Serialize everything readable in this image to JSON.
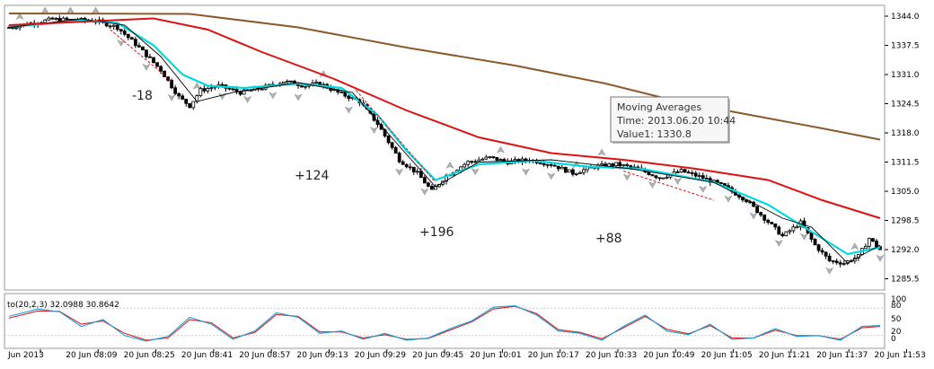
{
  "chart_data": {
    "type": "candlestick",
    "title": "",
    "price_axis": {
      "ylim": [
        1283,
        1346
      ],
      "ticks": [
        "1344.0",
        "1337.5",
        "1331.0",
        "1324.5",
        "1318.0",
        "1311.5",
        "1305.0",
        "1298.5",
        "1292.0",
        "1285.5"
      ]
    },
    "time_axis": {
      "labels": [
        "Jun 2013",
        "20 Jun 08:09",
        "20 Jun 08:25",
        "20 Jun 08:41",
        "20 Jun 08:57",
        "20 Jun 09:13",
        "20 Jun 09:29",
        "20 Jun 09:45",
        "20 Jun 10:01",
        "20 Jun 10:17",
        "20 Jun 10:33",
        "20 Jun 10:49",
        "20 Jun 11:05",
        "20 Jun 11:21",
        "20 Jun 11:37",
        "20 Jun 11:53"
      ]
    },
    "price_path": [
      [
        0,
        1341.5
      ],
      [
        12,
        1343.3
      ],
      [
        24,
        1343.0
      ],
      [
        30,
        1341.5
      ],
      [
        36,
        1337.0
      ],
      [
        42,
        1332.0
      ],
      [
        47,
        1326.0
      ],
      [
        50,
        1324.0
      ],
      [
        53,
        1327.5
      ],
      [
        58,
        1328.5
      ],
      [
        64,
        1327.0
      ],
      [
        70,
        1328.0
      ],
      [
        76,
        1329.5
      ],
      [
        82,
        1328.5
      ],
      [
        86,
        1329.0
      ],
      [
        91,
        1327.0
      ],
      [
        97,
        1325.0
      ],
      [
        102,
        1320.0
      ],
      [
        108,
        1312.0
      ],
      [
        113,
        1309.0
      ],
      [
        117,
        1305.0
      ],
      [
        121,
        1308.5
      ],
      [
        127,
        1311.5
      ],
      [
        133,
        1312.5
      ],
      [
        138,
        1311.5
      ],
      [
        144,
        1312.0
      ],
      [
        150,
        1311.0
      ],
      [
        156,
        1309.0
      ],
      [
        162,
        1310.5
      ],
      [
        168,
        1311.0
      ],
      [
        174,
        1310.0
      ],
      [
        180,
        1308.0
      ],
      [
        186,
        1309.5
      ],
      [
        192,
        1308.0
      ],
      [
        198,
        1306.0
      ],
      [
        204,
        1303.0
      ],
      [
        209,
        1299.0
      ],
      [
        214,
        1295.0
      ],
      [
        219,
        1298.0
      ],
      [
        223,
        1293.0
      ],
      [
        227,
        1289.5
      ],
      [
        231,
        1289.0
      ],
      [
        235,
        1290.5
      ],
      [
        238,
        1294.5
      ],
      [
        241,
        1292.0
      ]
    ],
    "series": [
      {
        "name": "",
        "color": "#00d8e0",
        "points": [
          [
            0,
            1341.6
          ],
          [
            20,
            1343.0
          ],
          [
            30,
            1342.5
          ],
          [
            40,
            1337.5
          ],
          [
            48,
            1331.0
          ],
          [
            55,
            1328.5
          ],
          [
            65,
            1328.0
          ],
          [
            80,
            1329.0
          ],
          [
            92,
            1328.0
          ],
          [
            102,
            1322.0
          ],
          [
            110,
            1314.0
          ],
          [
            118,
            1307.5
          ],
          [
            130,
            1311.0
          ],
          [
            145,
            1311.8
          ],
          [
            160,
            1310.5
          ],
          [
            175,
            1310.0
          ],
          [
            195,
            1307.0
          ],
          [
            210,
            1302.0
          ],
          [
            222,
            1296.0
          ],
          [
            232,
            1291.0
          ],
          [
            241,
            1292.5
          ]
        ]
      },
      {
        "name": "",
        "color": "#000000",
        "points": [
          [
            0,
            1341.5
          ],
          [
            20,
            1343.4
          ],
          [
            32,
            1342.0
          ],
          [
            42,
            1335.0
          ],
          [
            52,
            1325.0
          ],
          [
            62,
            1327.0
          ],
          [
            80,
            1329.2
          ],
          [
            95,
            1327.0
          ],
          [
            108,
            1315.0
          ],
          [
            118,
            1306.0
          ],
          [
            130,
            1311.5
          ],
          [
            150,
            1312.0
          ],
          [
            172,
            1310.0
          ],
          [
            195,
            1307.0
          ],
          [
            214,
            1299.0
          ],
          [
            222,
            1297.0
          ],
          [
            232,
            1289.0
          ],
          [
            241,
            1293.0
          ]
        ]
      },
      {
        "name": "",
        "color": "#dd1111",
        "points": [
          [
            0,
            1342.0
          ],
          [
            40,
            1343.5
          ],
          [
            55,
            1341.0
          ],
          [
            70,
            1336.0
          ],
          [
            90,
            1330.0
          ],
          [
            110,
            1323.0
          ],
          [
            130,
            1317.0
          ],
          [
            150,
            1313.5
          ],
          [
            170,
            1312.0
          ],
          [
            190,
            1310.0
          ],
          [
            210,
            1307.5
          ],
          [
            225,
            1303.0
          ],
          [
            241,
            1299.0
          ]
        ]
      },
      {
        "name": "",
        "color": "#8b5a2b",
        "points": [
          [
            0,
            1344.6
          ],
          [
            50,
            1344.5
          ],
          [
            80,
            1341.5
          ],
          [
            110,
            1337.0
          ],
          [
            140,
            1333.0
          ],
          [
            165,
            1329.0
          ],
          [
            185,
            1325.0
          ],
          [
            205,
            1322.0
          ],
          [
            225,
            1319.0
          ],
          [
            241,
            1316.5
          ]
        ]
      }
    ],
    "annotations": [
      "-18",
      "+124",
      "+196",
      "+88"
    ],
    "tooltip": {
      "title": "Moving Averages",
      "time": "Time: 2013.06.20 10:44",
      "value": "Value1: 1330.8"
    },
    "oscillator": {
      "label": "to(20,2,3) 32.0988 30.8642",
      "ylim": [
        0,
        100
      ],
      "ticks": [
        "100",
        "80",
        "50",
        "20",
        "0"
      ],
      "main": [
        [
          0,
          62
        ],
        [
          8,
          78
        ],
        [
          14,
          72
        ],
        [
          20,
          40
        ],
        [
          26,
          55
        ],
        [
          32,
          20
        ],
        [
          38,
          8
        ],
        [
          44,
          18
        ],
        [
          50,
          60
        ],
        [
          56,
          45
        ],
        [
          62,
          12
        ],
        [
          68,
          30
        ],
        [
          74,
          70
        ],
        [
          80,
          60
        ],
        [
          86,
          25
        ],
        [
          92,
          30
        ],
        [
          98,
          12
        ],
        [
          104,
          25
        ],
        [
          110,
          10
        ],
        [
          116,
          15
        ],
        [
          122,
          35
        ],
        [
          128,
          52
        ],
        [
          134,
          82
        ],
        [
          140,
          85
        ],
        [
          146,
          65
        ],
        [
          152,
          30
        ],
        [
          158,
          25
        ],
        [
          164,
          10
        ],
        [
          170,
          40
        ],
        [
          176,
          65
        ],
        [
          182,
          30
        ],
        [
          188,
          22
        ],
        [
          194,
          45
        ],
        [
          200,
          12
        ],
        [
          206,
          15
        ],
        [
          212,
          35
        ],
        [
          218,
          18
        ],
        [
          224,
          20
        ],
        [
          230,
          10
        ],
        [
          236,
          40
        ],
        [
          241,
          42
        ]
      ],
      "signal": [
        [
          0,
          58
        ],
        [
          8,
          74
        ],
        [
          14,
          73
        ],
        [
          20,
          45
        ],
        [
          26,
          52
        ],
        [
          32,
          25
        ],
        [
          38,
          10
        ],
        [
          44,
          15
        ],
        [
          50,
          55
        ],
        [
          56,
          48
        ],
        [
          62,
          15
        ],
        [
          68,
          27
        ],
        [
          74,
          66
        ],
        [
          80,
          62
        ],
        [
          86,
          28
        ],
        [
          92,
          28
        ],
        [
          98,
          15
        ],
        [
          104,
          22
        ],
        [
          110,
          12
        ],
        [
          116,
          14
        ],
        [
          122,
          32
        ],
        [
          128,
          50
        ],
        [
          134,
          78
        ],
        [
          140,
          84
        ],
        [
          146,
          68
        ],
        [
          152,
          33
        ],
        [
          158,
          27
        ],
        [
          164,
          13
        ],
        [
          170,
          37
        ],
        [
          176,
          62
        ],
        [
          182,
          34
        ],
        [
          188,
          24
        ],
        [
          194,
          42
        ],
        [
          200,
          15
        ],
        [
          206,
          15
        ],
        [
          212,
          32
        ],
        [
          218,
          20
        ],
        [
          224,
          20
        ],
        [
          230,
          12
        ],
        [
          236,
          37
        ],
        [
          241,
          40
        ]
      ]
    }
  }
}
